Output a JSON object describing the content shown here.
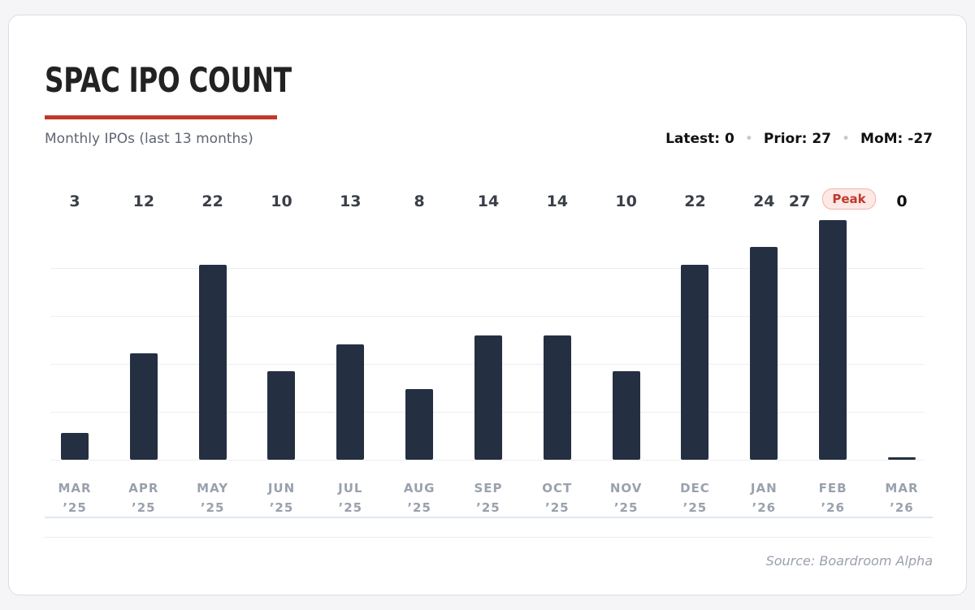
{
  "chart_data": {
    "type": "bar",
    "title": "SPAC IPO COUNT",
    "subtitle": "Monthly IPOs (last 13 months)",
    "stats": [
      {
        "label": "Latest:",
        "value": 0
      },
      {
        "label": "Prior:",
        "value": 27
      },
      {
        "label": "MoM:",
        "value": -27
      }
    ],
    "categories": [
      "MAR ’25",
      "APR ’25",
      "MAY ’25",
      "JUN ’25",
      "JUL ’25",
      "AUG ’25",
      "SEP ’25",
      "OCT ’25",
      "NOV ’25",
      "DEC ’25",
      "JAN ’26",
      "FEB ’26",
      "MAR ’26"
    ],
    "values": [
      3,
      12,
      22,
      10,
      13,
      8,
      14,
      14,
      10,
      22,
      24,
      27,
      0
    ],
    "color": "#243042",
    "ylim": [
      0,
      27
    ],
    "yticks": [
      0,
      5.4,
      10.8,
      16.2,
      21.6
    ],
    "grid": true,
    "annotation": "Peak",
    "source": "Source: Boardroom Alpha"
  }
}
